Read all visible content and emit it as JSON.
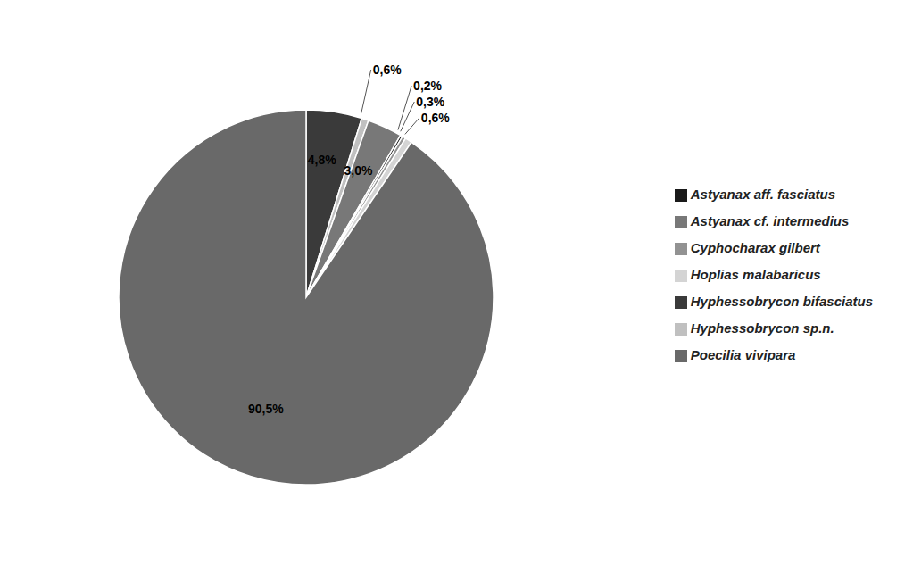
{
  "chart_data": {
    "type": "pie",
    "categories": [
      "Hyphessobrycon bifasciatus",
      "Hyphessobrycon sp.n.",
      "Astyanax cf. intermedius",
      "Astyanax aff. fasciatus",
      "Cyphocharax gilbert",
      "Hoplias malabaricus",
      "Poecilia vivipara"
    ],
    "values": [
      4.8,
      0.6,
      3.0,
      0.2,
      0.3,
      0.6,
      90.5
    ],
    "value_labels": [
      "4,8%",
      "0,6%",
      "3,0%",
      "0,2%",
      "0,3%",
      "0,6%",
      "90,5%"
    ],
    "colors": [
      "#3a3a3a",
      "#c0c0c0",
      "#787878",
      "#1a1a1a",
      "#929292",
      "#d4d4d4",
      "#696969"
    ],
    "data_labels": true,
    "legend": "right"
  }
}
